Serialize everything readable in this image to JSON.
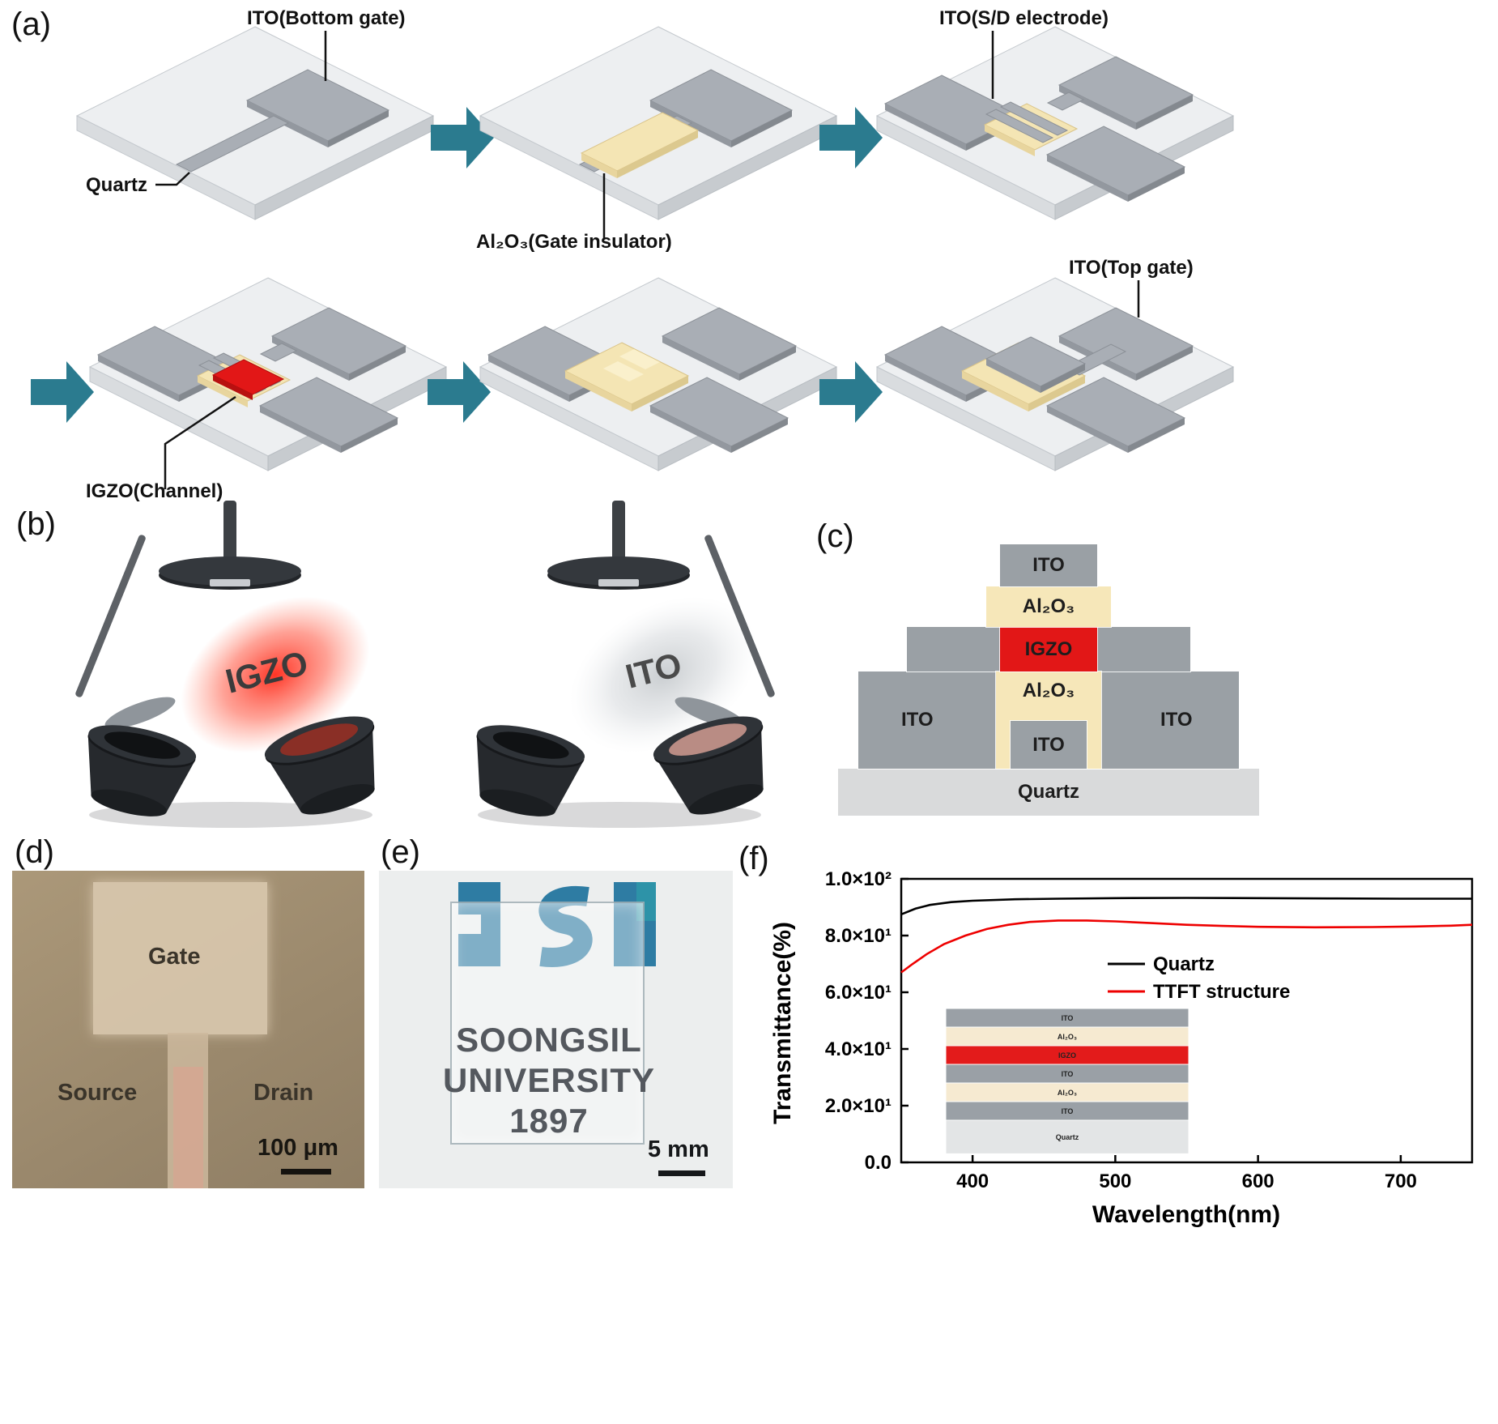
{
  "figure": {
    "panel_tags": {
      "a": "(a)",
      "b": "(b)",
      "c": "(c)",
      "d": "(d)",
      "e": "(e)",
      "f": "(f)"
    }
  },
  "panel_a": {
    "labels": {
      "ito_bottom_gate": "ITO(Bottom gate)",
      "quartz": "Quartz",
      "al2o3_gate_insulator": "Al₂O₃(Gate insulator)",
      "ito_sd_electrode": "ITO(S/D electrode)",
      "igzo_channel": "IGZO(Channel)",
      "ito_top_gate": "ITO(Top gate)"
    }
  },
  "panel_b": {
    "left_plume": "IGZO",
    "right_plume": "ITO"
  },
  "panel_c": {
    "top_ito": "ITO",
    "top_al2o3": "Al₂O₃",
    "igzo": "IGZO",
    "left_ito": "ITO",
    "mid_al2o3": "Al₂O₃",
    "right_ito": "ITO",
    "bottom_ito": "ITO",
    "quartz": "Quartz"
  },
  "panel_d": {
    "gate": "Gate",
    "source": "Source",
    "drain": "Drain",
    "scale_bar": "100 μm"
  },
  "panel_e": {
    "line1": "SOONGSIL",
    "line2": "UNIVERSITY",
    "line3": "1897",
    "scale_bar": "5 mm"
  },
  "chart_data": {
    "type": "line",
    "title": "",
    "xlabel": "Wavelength(nm)",
    "ylabel": "Transmittance(%)",
    "xlim": [
      350,
      750
    ],
    "ylim": [
      0,
      100
    ],
    "x_ticks": [
      400,
      500,
      600,
      700
    ],
    "y_ticks": [
      {
        "v": 0,
        "label": "0.0"
      },
      {
        "v": 20,
        "label": "2.0×10¹"
      },
      {
        "v": 40,
        "label": "4.0×10¹"
      },
      {
        "v": 60,
        "label": "6.0×10¹"
      },
      {
        "v": 80,
        "label": "8.0×10¹"
      },
      {
        "v": 100,
        "label": "1.0×10²"
      }
    ],
    "grid": false,
    "legend_position": "upper right",
    "series": [
      {
        "name": "Quartz",
        "color": "#000000",
        "x": [
          350,
          360,
          370,
          385,
          400,
          430,
          460,
          500,
          550,
          600,
          650,
          700,
          750
        ],
        "y": [
          87.5,
          89.5,
          90.8,
          91.8,
          92.3,
          92.8,
          93.0,
          93.2,
          93.3,
          93.2,
          93.1,
          93.0,
          93.0
        ]
      },
      {
        "name": "TTFT structure",
        "color": "#ee0000",
        "x": [
          350,
          358,
          368,
          380,
          395,
          410,
          425,
          440,
          460,
          480,
          500,
          525,
          550,
          575,
          600,
          640,
          680,
          710,
          735,
          750
        ],
        "y": [
          67.0,
          70.0,
          73.5,
          77.0,
          80.0,
          82.3,
          83.8,
          84.8,
          85.3,
          85.3,
          85.0,
          84.4,
          83.8,
          83.4,
          83.1,
          82.9,
          83.0,
          83.2,
          83.5,
          83.8
        ]
      }
    ],
    "inset_layers": [
      {
        "label": "ITO",
        "color": "#9aa0a6",
        "h": 1
      },
      {
        "label": "Al₂O₃",
        "color": "#f6ead1",
        "h": 1
      },
      {
        "label": "IGZO",
        "color": "#e31b1b",
        "h": 1
      },
      {
        "label": "ITO",
        "color": "#9aa0a6",
        "h": 1
      },
      {
        "label": "Al₂O₃",
        "color": "#f6ead1",
        "h": 1
      },
      {
        "label": "ITO",
        "color": "#9aa0a6",
        "h": 1
      },
      {
        "label": "Quartz",
        "color": "#e3e5e6",
        "h": 1.8
      }
    ]
  },
  "colors": {
    "arrow_teal": "#2b7b8f",
    "igzo_red": "#e21717",
    "al2o3_cream": "#f6e7b9",
    "ito_gray": "#9aa0a5",
    "quartz_light": "#d9dadb"
  }
}
